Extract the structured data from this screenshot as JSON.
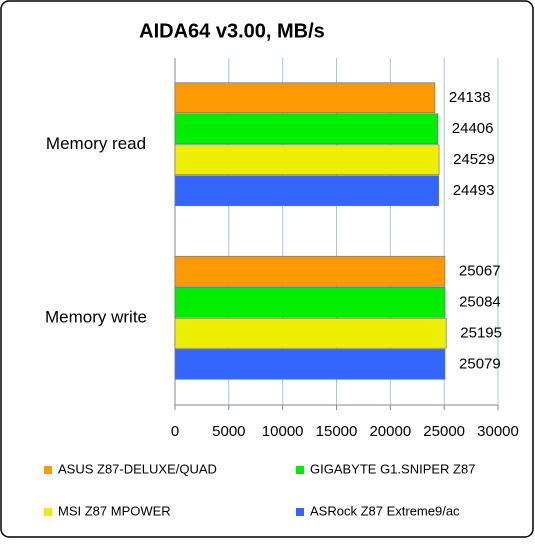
{
  "chart_data": {
    "type": "bar",
    "orientation": "horizontal",
    "title": "AIDA64 v3.00, MB/s",
    "categories": [
      "Memory read",
      "Memory write"
    ],
    "series": [
      {
        "name": "ASUS Z87-DELUXE/QUAD",
        "color": "#ff9900",
        "values": [
          24138,
          25067
        ]
      },
      {
        "name": "GIGABYTE G1.SNIPER Z87",
        "color": "#00ee00",
        "values": [
          24406,
          25084
        ]
      },
      {
        "name": "MSI Z87 MPOWER",
        "color": "#eeee00",
        "values": [
          24529,
          25195
        ]
      },
      {
        "name": "ASRock Z87 Extreme9/ac",
        "color": "#3366ff",
        "values": [
          24493,
          25079
        ]
      }
    ],
    "xlim": [
      0,
      30000
    ],
    "xticks": [
      0,
      5000,
      10000,
      15000,
      20000,
      25000,
      30000
    ],
    "grid": true
  }
}
